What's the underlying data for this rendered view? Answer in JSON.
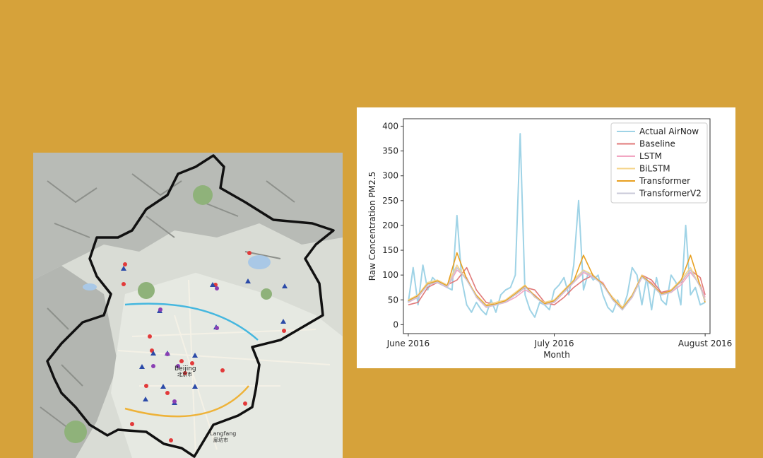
{
  "map": {
    "city_label_en": "Beijing",
    "city_label_cn": "北京市",
    "langfang_label_en": "Langfang",
    "langfang_label_cn": "廊坊市"
  },
  "chart_data": {
    "type": "line",
    "title": "",
    "xlabel": "Month",
    "ylabel": "Raw Concentration PM2.5",
    "xlim": [
      "2016-05-31",
      "2016-08-02"
    ],
    "ylim": [
      -18,
      415
    ],
    "x_ticks": [
      {
        "date": "2016-06-01",
        "label": "June 2016"
      },
      {
        "date": "2016-07-01",
        "label": "July 2016"
      },
      {
        "date": "2016-08-01",
        "label": "August 2016"
      }
    ],
    "y_ticks": [
      0,
      50,
      100,
      150,
      200,
      250,
      300,
      350,
      400
    ],
    "grid": false,
    "legend_position": "top-right",
    "series": [
      {
        "name": "Actual AirNow",
        "color": "#9fd3e6",
        "x": [
          "2016-06-01",
          "2016-06-02",
          "2016-06-03",
          "2016-06-04",
          "2016-06-05",
          "2016-06-06",
          "2016-06-07",
          "2016-06-08",
          "2016-06-09",
          "2016-06-10",
          "2016-06-11",
          "2016-06-12",
          "2016-06-13",
          "2016-06-14",
          "2016-06-15",
          "2016-06-16",
          "2016-06-17",
          "2016-06-18",
          "2016-06-19",
          "2016-06-20",
          "2016-06-21",
          "2016-06-22",
          "2016-06-23",
          "2016-06-24",
          "2016-06-25",
          "2016-06-26",
          "2016-06-27",
          "2016-06-28",
          "2016-06-29",
          "2016-06-30",
          "2016-07-01",
          "2016-07-02",
          "2016-07-03",
          "2016-07-04",
          "2016-07-05",
          "2016-07-06",
          "2016-07-07",
          "2016-07-08",
          "2016-07-09",
          "2016-07-10",
          "2016-07-11",
          "2016-07-12",
          "2016-07-13",
          "2016-07-14",
          "2016-07-15",
          "2016-07-16",
          "2016-07-17",
          "2016-07-18",
          "2016-07-19",
          "2016-07-20",
          "2016-07-21",
          "2016-07-22",
          "2016-07-23",
          "2016-07-24",
          "2016-07-25",
          "2016-07-26",
          "2016-07-27",
          "2016-07-28",
          "2016-07-29",
          "2016-07-30",
          "2016-07-31",
          "2016-08-01"
        ],
        "values": [
          45,
          115,
          40,
          120,
          70,
          95,
          85,
          80,
          75,
          70,
          220,
          90,
          40,
          25,
          45,
          30,
          20,
          50,
          25,
          60,
          70,
          75,
          100,
          385,
          60,
          30,
          15,
          45,
          40,
          30,
          70,
          80,
          95,
          60,
          120,
          250,
          70,
          105,
          90,
          100,
          60,
          35,
          25,
          50,
          30,
          60,
          115,
          100,
          40,
          95,
          30,
          95,
          50,
          40,
          100,
          85,
          40,
          200,
          60,
          75,
          40,
          45
        ]
      },
      {
        "name": "Baseline",
        "color": "#e07a7a",
        "x": [
          "2016-06-01",
          "2016-06-03",
          "2016-06-05",
          "2016-06-07",
          "2016-06-09",
          "2016-06-11",
          "2016-06-13",
          "2016-06-15",
          "2016-06-17",
          "2016-06-19",
          "2016-06-21",
          "2016-06-23",
          "2016-06-25",
          "2016-06-27",
          "2016-06-29",
          "2016-07-01",
          "2016-07-03",
          "2016-07-05",
          "2016-07-07",
          "2016-07-09",
          "2016-07-11",
          "2016-07-13",
          "2016-07-15",
          "2016-07-17",
          "2016-07-19",
          "2016-07-21",
          "2016-07-23",
          "2016-07-25",
          "2016-07-27",
          "2016-07-29",
          "2016-07-31",
          "2016-08-01"
        ],
        "values": [
          40,
          45,
          75,
          85,
          80,
          90,
          115,
          70,
          45,
          40,
          50,
          60,
          75,
          70,
          45,
          40,
          55,
          75,
          90,
          100,
          80,
          55,
          35,
          55,
          100,
          90,
          65,
          70,
          85,
          110,
          95,
          60
        ]
      },
      {
        "name": "LSTM",
        "color": "#f2a6c2",
        "x": [
          "2016-06-01",
          "2016-06-03",
          "2016-06-05",
          "2016-06-07",
          "2016-06-09",
          "2016-06-11",
          "2016-06-13",
          "2016-06-15",
          "2016-06-17",
          "2016-06-19",
          "2016-06-21",
          "2016-06-23",
          "2016-06-25",
          "2016-06-27",
          "2016-06-29",
          "2016-07-01",
          "2016-07-03",
          "2016-07-05",
          "2016-07-07",
          "2016-07-09",
          "2016-07-11",
          "2016-07-13",
          "2016-07-15",
          "2016-07-17",
          "2016-07-19",
          "2016-07-21",
          "2016-07-23",
          "2016-07-25",
          "2016-07-27",
          "2016-07-29",
          "2016-07-31",
          "2016-08-01"
        ],
        "values": [
          45,
          55,
          80,
          85,
          75,
          110,
          95,
          55,
          35,
          40,
          45,
          55,
          70,
          60,
          40,
          45,
          65,
          85,
          105,
          95,
          85,
          50,
          30,
          55,
          95,
          85,
          60,
          65,
          80,
          105,
          80,
          55
        ]
      },
      {
        "name": "BiLSTM",
        "color": "#f4d48a",
        "x": [
          "2016-06-01",
          "2016-06-03",
          "2016-06-05",
          "2016-06-07",
          "2016-06-09",
          "2016-06-11",
          "2016-06-13",
          "2016-06-15",
          "2016-06-17",
          "2016-06-19",
          "2016-06-21",
          "2016-06-23",
          "2016-06-25",
          "2016-06-27",
          "2016-06-29",
          "2016-07-01",
          "2016-07-03",
          "2016-07-05",
          "2016-07-07",
          "2016-07-09",
          "2016-07-11",
          "2016-07-13",
          "2016-07-15",
          "2016-07-17",
          "2016-07-19",
          "2016-07-21",
          "2016-07-23",
          "2016-07-25",
          "2016-07-27",
          "2016-07-29",
          "2016-07-31",
          "2016-08-01"
        ],
        "values": [
          50,
          60,
          85,
          90,
          80,
          120,
          90,
          60,
          40,
          45,
          50,
          65,
          80,
          55,
          45,
          50,
          70,
          90,
          110,
          100,
          80,
          55,
          35,
          60,
          100,
          80,
          60,
          70,
          90,
          115,
          75,
          50
        ]
      },
      {
        "name": "Transformer",
        "color": "#e8a020",
        "x": [
          "2016-06-01",
          "2016-06-03",
          "2016-06-05",
          "2016-06-07",
          "2016-06-09",
          "2016-06-11",
          "2016-06-13",
          "2016-06-15",
          "2016-06-17",
          "2016-06-19",
          "2016-06-21",
          "2016-06-23",
          "2016-06-25",
          "2016-06-27",
          "2016-06-29",
          "2016-07-01",
          "2016-07-03",
          "2016-07-05",
          "2016-07-07",
          "2016-07-09",
          "2016-07-11",
          "2016-07-13",
          "2016-07-15",
          "2016-07-17",
          "2016-07-19",
          "2016-07-21",
          "2016-07-23",
          "2016-07-25",
          "2016-07-27",
          "2016-07-29",
          "2016-07-31",
          "2016-08-01"
        ],
        "values": [
          48,
          58,
          82,
          88,
          78,
          145,
          92,
          58,
          38,
          42,
          48,
          62,
          78,
          58,
          42,
          48,
          68,
          88,
          140,
          98,
          82,
          52,
          32,
          58,
          98,
          82,
          62,
          68,
          88,
          140,
          78,
          45
        ]
      },
      {
        "name": "TransformerV2",
        "color": "#c8c8d8",
        "x": [
          "2016-06-01",
          "2016-06-03",
          "2016-06-05",
          "2016-06-07",
          "2016-06-09",
          "2016-06-11",
          "2016-06-13",
          "2016-06-15",
          "2016-06-17",
          "2016-06-19",
          "2016-06-21",
          "2016-06-23",
          "2016-06-25",
          "2016-06-27",
          "2016-06-29",
          "2016-07-01",
          "2016-07-03",
          "2016-07-05",
          "2016-07-07",
          "2016-07-09",
          "2016-07-11",
          "2016-07-13",
          "2016-07-15",
          "2016-07-17",
          "2016-07-19",
          "2016-07-21",
          "2016-07-23",
          "2016-07-25",
          "2016-07-27",
          "2016-07-29",
          "2016-07-31",
          "2016-08-01"
        ],
        "values": [
          46,
          56,
          80,
          86,
          76,
          115,
          90,
          56,
          36,
          40,
          46,
          60,
          76,
          56,
          40,
          46,
          66,
          86,
          108,
          96,
          80,
          50,
          30,
          56,
          96,
          80,
          60,
          66,
          86,
          110,
          76,
          48
        ]
      }
    ]
  }
}
